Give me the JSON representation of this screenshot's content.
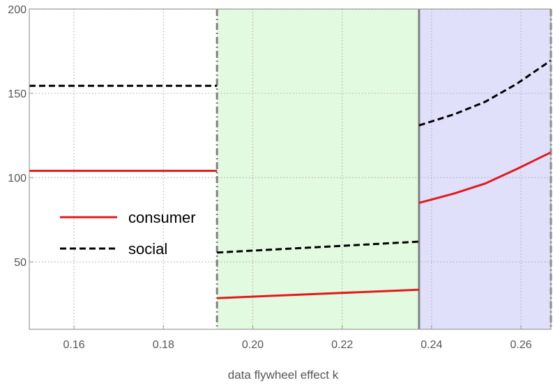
{
  "chart_data": {
    "type": "line",
    "title": "",
    "xlabel": "data flywheel effect k",
    "ylabel": "",
    "xlim": [
      0.15,
      0.2667
    ],
    "ylim": [
      10,
      200
    ],
    "xticks": [
      0.16,
      0.18,
      0.2,
      0.22,
      0.24,
      0.26
    ],
    "xtick_labels": [
      "0.16",
      "0.18",
      "0.20",
      "0.22",
      "0.24",
      "0.26"
    ],
    "yticks": [
      50,
      100,
      150,
      200
    ],
    "ytick_labels": [
      "50",
      "100",
      "150",
      "200"
    ],
    "grid": true,
    "legend_position": "left-middle",
    "regions": [
      {
        "x": [
          0.192,
          0.2372
        ],
        "color": "#e2fae0"
      },
      {
        "x": [
          0.2372,
          0.2667
        ],
        "color": "#e0e0fb"
      }
    ],
    "boundaries": [
      {
        "x": 0.192,
        "style": "dash-dot"
      },
      {
        "x": 0.2372,
        "style": "solid"
      },
      {
        "x": 0.2667,
        "style": "dash-dot"
      }
    ],
    "series": [
      {
        "name": "consumer",
        "color": "#e31a1c",
        "dash": "solid",
        "segments": [
          [
            [
              0.15,
              104
            ],
            [
              0.192,
              104
            ]
          ],
          [
            [
              0.192,
              28.5
            ],
            [
              0.2372,
              33.5
            ]
          ],
          [
            [
              0.2372,
              85
            ],
            [
              0.245,
              90.5
            ],
            [
              0.252,
              96.5
            ],
            [
              0.259,
              105
            ],
            [
              0.2667,
              115
            ]
          ]
        ]
      },
      {
        "name": "social",
        "color": "#000000",
        "dash": "dashed",
        "segments": [
          [
            [
              0.15,
              154.5
            ],
            [
              0.192,
              154.5
            ]
          ],
          [
            [
              0.192,
              55.5
            ],
            [
              0.2372,
              62
            ]
          ],
          [
            [
              0.2372,
              131
            ],
            [
              0.245,
              137.5
            ],
            [
              0.252,
              145
            ],
            [
              0.259,
              155.5
            ],
            [
              0.2667,
              169.5
            ]
          ]
        ]
      }
    ]
  }
}
